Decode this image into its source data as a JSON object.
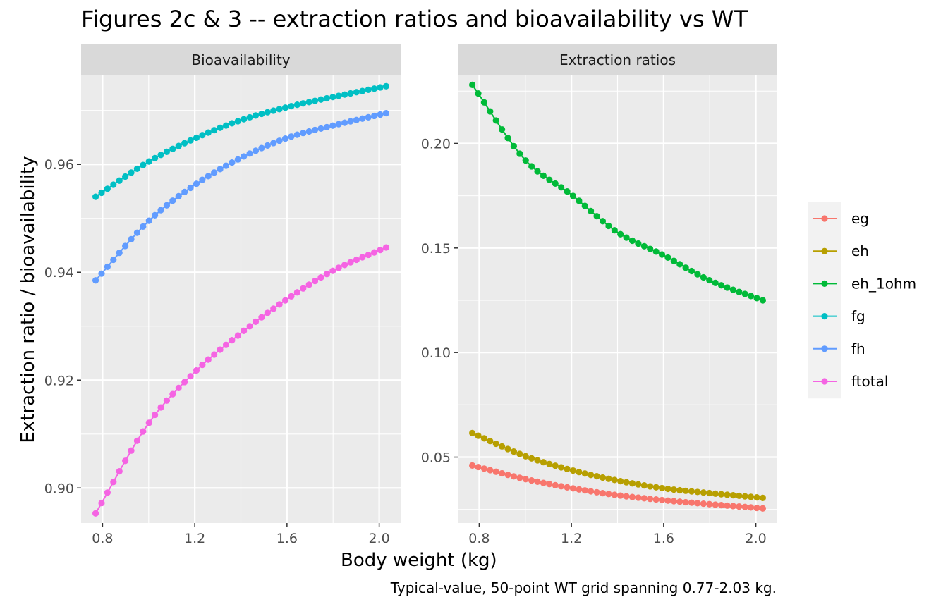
{
  "chart_data": {
    "type": "line",
    "title": "Figures 2c & 3 -- extraction ratios and bioavailability vs WT",
    "xlabel": "Body weight (kg)",
    "ylabel": "Extraction ratio / bioavailability",
    "caption": "Typical-value, 50-point WT grid spanning 0.77-2.03 kg.",
    "markers": true,
    "grid": true,
    "legend_position": "right",
    "x_range": [
      0.77,
      2.03
    ],
    "n_points": 50,
    "legend": [
      "eg",
      "eh",
      "eh_1ohm",
      "fg",
      "fh",
      "ftotal"
    ],
    "colors": {
      "eg": "#F8766D",
      "eh": "#B79F00",
      "eh_1ohm": "#00BA38",
      "fg": "#00BFC4",
      "fh": "#619CFF",
      "ftotal": "#F564E3"
    },
    "panels": [
      {
        "strip": "Bioavailability",
        "xticks": [
          "0.8",
          "1.2",
          "1.6",
          "2.0"
        ],
        "yticks": [
          "0.90",
          "0.92",
          "0.94",
          "0.96"
        ],
        "ylim": [
          0.8935,
          0.9765
        ],
        "series": [
          {
            "name": "fg",
            "x": [
              0.77,
              1.0,
              1.2,
              1.4,
              1.6,
              1.8,
              2.03
            ],
            "y": [
              0.954,
              0.9605,
              0.9648,
              0.9682,
              0.9706,
              0.9725,
              0.9745
            ]
          },
          {
            "name": "fh",
            "x": [
              0.77,
              1.0,
              1.2,
              1.4,
              1.6,
              1.8,
              2.03
            ],
            "y": [
              0.9385,
              0.9495,
              0.9562,
              0.9612,
              0.9649,
              0.9672,
              0.9695
            ]
          },
          {
            "name": "ftotal",
            "x": [
              0.77,
              1.0,
              1.2,
              1.4,
              1.6,
              1.8,
              2.03
            ],
            "y": [
              0.8953,
              0.912,
              0.9215,
              0.9287,
              0.935,
              0.9403,
              0.9446
            ]
          }
        ]
      },
      {
        "strip": "Extraction ratios",
        "xticks": [
          "0.8",
          "1.2",
          "1.6",
          "2.0"
        ],
        "yticks": [
          "0.05",
          "0.10",
          "0.15",
          "0.20"
        ],
        "ylim": [
          0.0185,
          0.2325
        ],
        "series": [
          {
            "name": "eg",
            "x": [
              0.77,
              1.0,
              1.2,
              1.4,
              1.6,
              1.8,
              2.03
            ],
            "y": [
              0.046,
              0.0395,
              0.0352,
              0.0318,
              0.0294,
              0.0275,
              0.0255
            ]
          },
          {
            "name": "eh",
            "x": [
              0.77,
              1.0,
              1.2,
              1.4,
              1.6,
              1.8,
              2.03
            ],
            "y": [
              0.0615,
              0.0505,
              0.0438,
              0.0388,
              0.0351,
              0.0328,
              0.0305
            ]
          },
          {
            "name": "eh_1ohm",
            "x": [
              0.77,
              1.0,
              1.2,
              1.4,
              1.6,
              1.8,
              2.03
            ],
            "y": [
              0.228,
              0.192,
              0.1755,
              0.1575,
              0.1465,
              0.1345,
              0.125
            ]
          }
        ]
      }
    ]
  }
}
